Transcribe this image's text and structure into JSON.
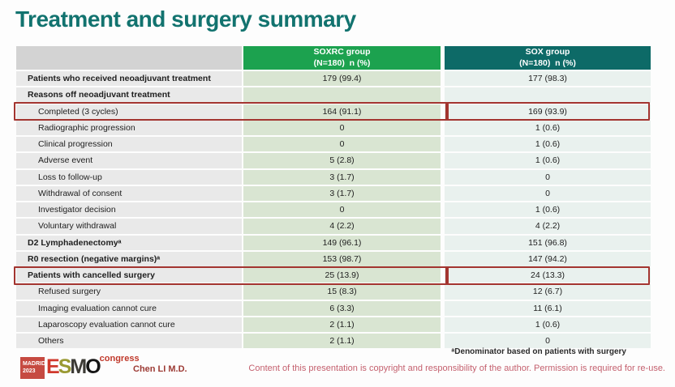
{
  "slide": {
    "title": "Treatment and surgery summary"
  },
  "table": {
    "header": {
      "group1": {
        "line1": "SOXRC group",
        "line2": "(N=180)  n (%)"
      },
      "group2": {
        "line1": "SOX group",
        "line2": "(N=180)  n (%)"
      }
    },
    "rows": [
      {
        "label": "Patients who received neoadjuvant treatment",
        "bold": true,
        "indent": false,
        "soxrc": "179 (99.4)",
        "sox": "177 (98.3)",
        "highlight": false
      },
      {
        "label": "Reasons off neoadjuvant treatment",
        "bold": true,
        "indent": false,
        "soxrc": "",
        "sox": "",
        "highlight": false
      },
      {
        "label": "Completed (3 cycles)",
        "bold": false,
        "indent": true,
        "soxrc": "164 (91.1)",
        "sox": "169 (93.9)",
        "highlight": true
      },
      {
        "label": "Radiographic progression",
        "bold": false,
        "indent": true,
        "soxrc": "0",
        "sox": "1 (0.6)",
        "highlight": false
      },
      {
        "label": "Clinical progression",
        "bold": false,
        "indent": true,
        "soxrc": "0",
        "sox": "1 (0.6)",
        "highlight": false
      },
      {
        "label": "Adverse event",
        "bold": false,
        "indent": true,
        "soxrc": "5 (2.8)",
        "sox": "1 (0.6)",
        "highlight": false
      },
      {
        "label": "Loss to follow-up",
        "bold": false,
        "indent": true,
        "soxrc": "3 (1.7)",
        "sox": "0",
        "highlight": false
      },
      {
        "label": "Withdrawal of consent",
        "bold": false,
        "indent": true,
        "soxrc": "3 (1.7)",
        "sox": "0",
        "highlight": false
      },
      {
        "label": "Investigator decision",
        "bold": false,
        "indent": true,
        "soxrc": "0",
        "sox": "1 (0.6)",
        "highlight": false
      },
      {
        "label": "Voluntary withdrawal",
        "bold": false,
        "indent": true,
        "soxrc": "4 (2.2)",
        "sox": "4 (2.2)",
        "highlight": false
      },
      {
        "label": "D2 Lymphadenectomyᵃ",
        "bold": true,
        "indent": false,
        "soxrc": "149 (96.1)",
        "sox": "151 (96.8)",
        "highlight": false
      },
      {
        "label": "R0 resection (negative margins)ᵃ",
        "bold": true,
        "indent": false,
        "soxrc": "153 (98.7)",
        "sox": "147 (94.2)",
        "highlight": false
      },
      {
        "label": "Patients with cancelled surgery",
        "bold": true,
        "indent": false,
        "soxrc": "25 (13.9)",
        "sox": "24 (13.3)",
        "highlight": true
      },
      {
        "label": "Refused surgery",
        "bold": false,
        "indent": true,
        "soxrc": "15 (8.3)",
        "sox": "12 (6.7)",
        "highlight": false
      },
      {
        "label": "Imaging evaluation cannot cure",
        "bold": false,
        "indent": true,
        "soxrc": "6 (3.3)",
        "sox": "11 (6.1)",
        "highlight": false
      },
      {
        "label": "Laparoscopy evaluation cannot cure",
        "bold": false,
        "indent": true,
        "soxrc": "2 (1.1)",
        "sox": "1 (0.6)",
        "highlight": false
      },
      {
        "label": "Others",
        "bold": false,
        "indent": true,
        "soxrc": "2 (1.1)",
        "sox": "0",
        "highlight": false
      }
    ]
  },
  "footer": {
    "logo": {
      "badge_line1": "MADRID",
      "badge_line2": "2023",
      "esmo_letters": [
        {
          "char": "E",
          "color": "#d0392c"
        },
        {
          "char": "S",
          "color": "#9a9a33"
        },
        {
          "char": "M",
          "color": "#3c3a35"
        },
        {
          "char": "O",
          "color": "#151515"
        }
      ],
      "congress_label": "congress"
    },
    "author": "Chen LI M.D.",
    "footnote": "ᵃDenominator based on patients with surgery",
    "copyright": "Content of this presentation is copyright and responsibility of the author. Permission is required for re-use."
  },
  "colors": {
    "title": "#12736f",
    "soxrc_header": "#1ca24f",
    "sox_header": "#0d6a67",
    "label_column_bg": "#e9e9e9",
    "soxrc_column_bg": "#d9e5d2",
    "sox_column_bg": "#e9f1ee",
    "highlight_border": "#a33530",
    "copyright_text": "#c4606e"
  }
}
